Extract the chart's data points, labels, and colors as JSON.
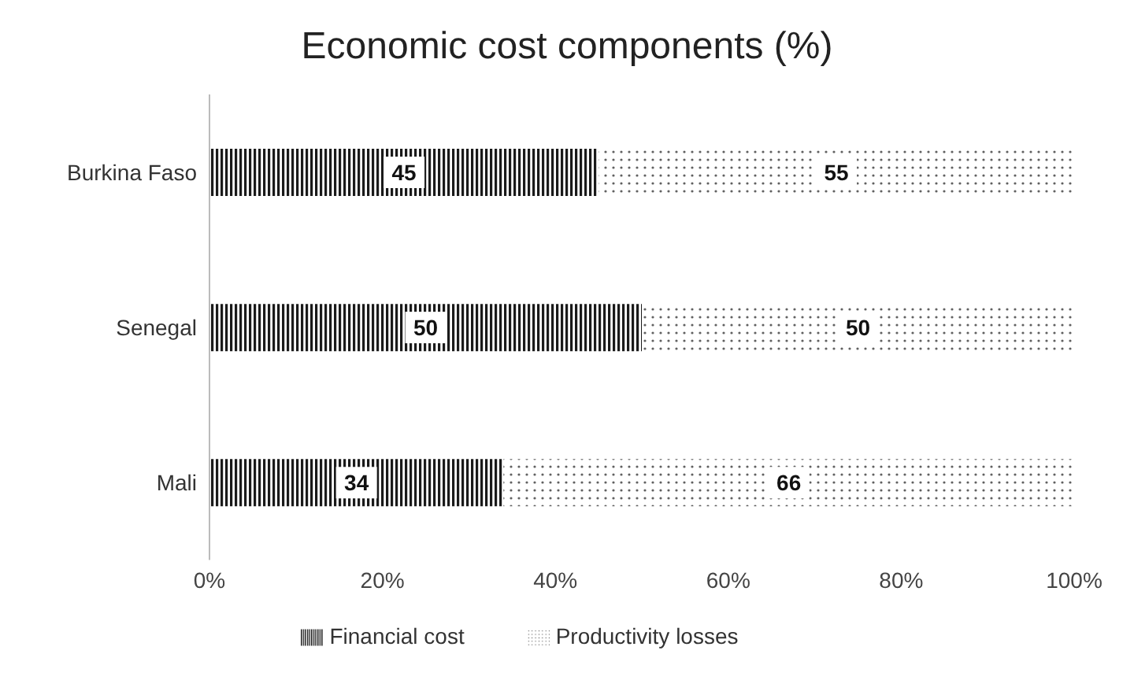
{
  "chart_data": {
    "type": "bar",
    "title": "Economic cost components (%)",
    "orientation": "horizontal",
    "stacked": true,
    "categories": [
      "Burkina Faso",
      "Senegal",
      "Mali"
    ],
    "series": [
      {
        "name": "Financial cost",
        "color": "#1a1a1a",
        "values": [
          45,
          50,
          34
        ]
      },
      {
        "name": "Productivity losses",
        "color": "#606060",
        "values": [
          55,
          50,
          66
        ]
      }
    ],
    "xlim": [
      0,
      100
    ],
    "xticks": [
      {
        "value": 0,
        "label": "0%"
      },
      {
        "value": 20,
        "label": "20%"
      },
      {
        "value": 40,
        "label": "40%"
      },
      {
        "value": 60,
        "label": "60%"
      },
      {
        "value": 80,
        "label": "80%"
      },
      {
        "value": 100,
        "label": "100%"
      }
    ],
    "data_labels": true,
    "grid": false,
    "legend": "bottom"
  }
}
